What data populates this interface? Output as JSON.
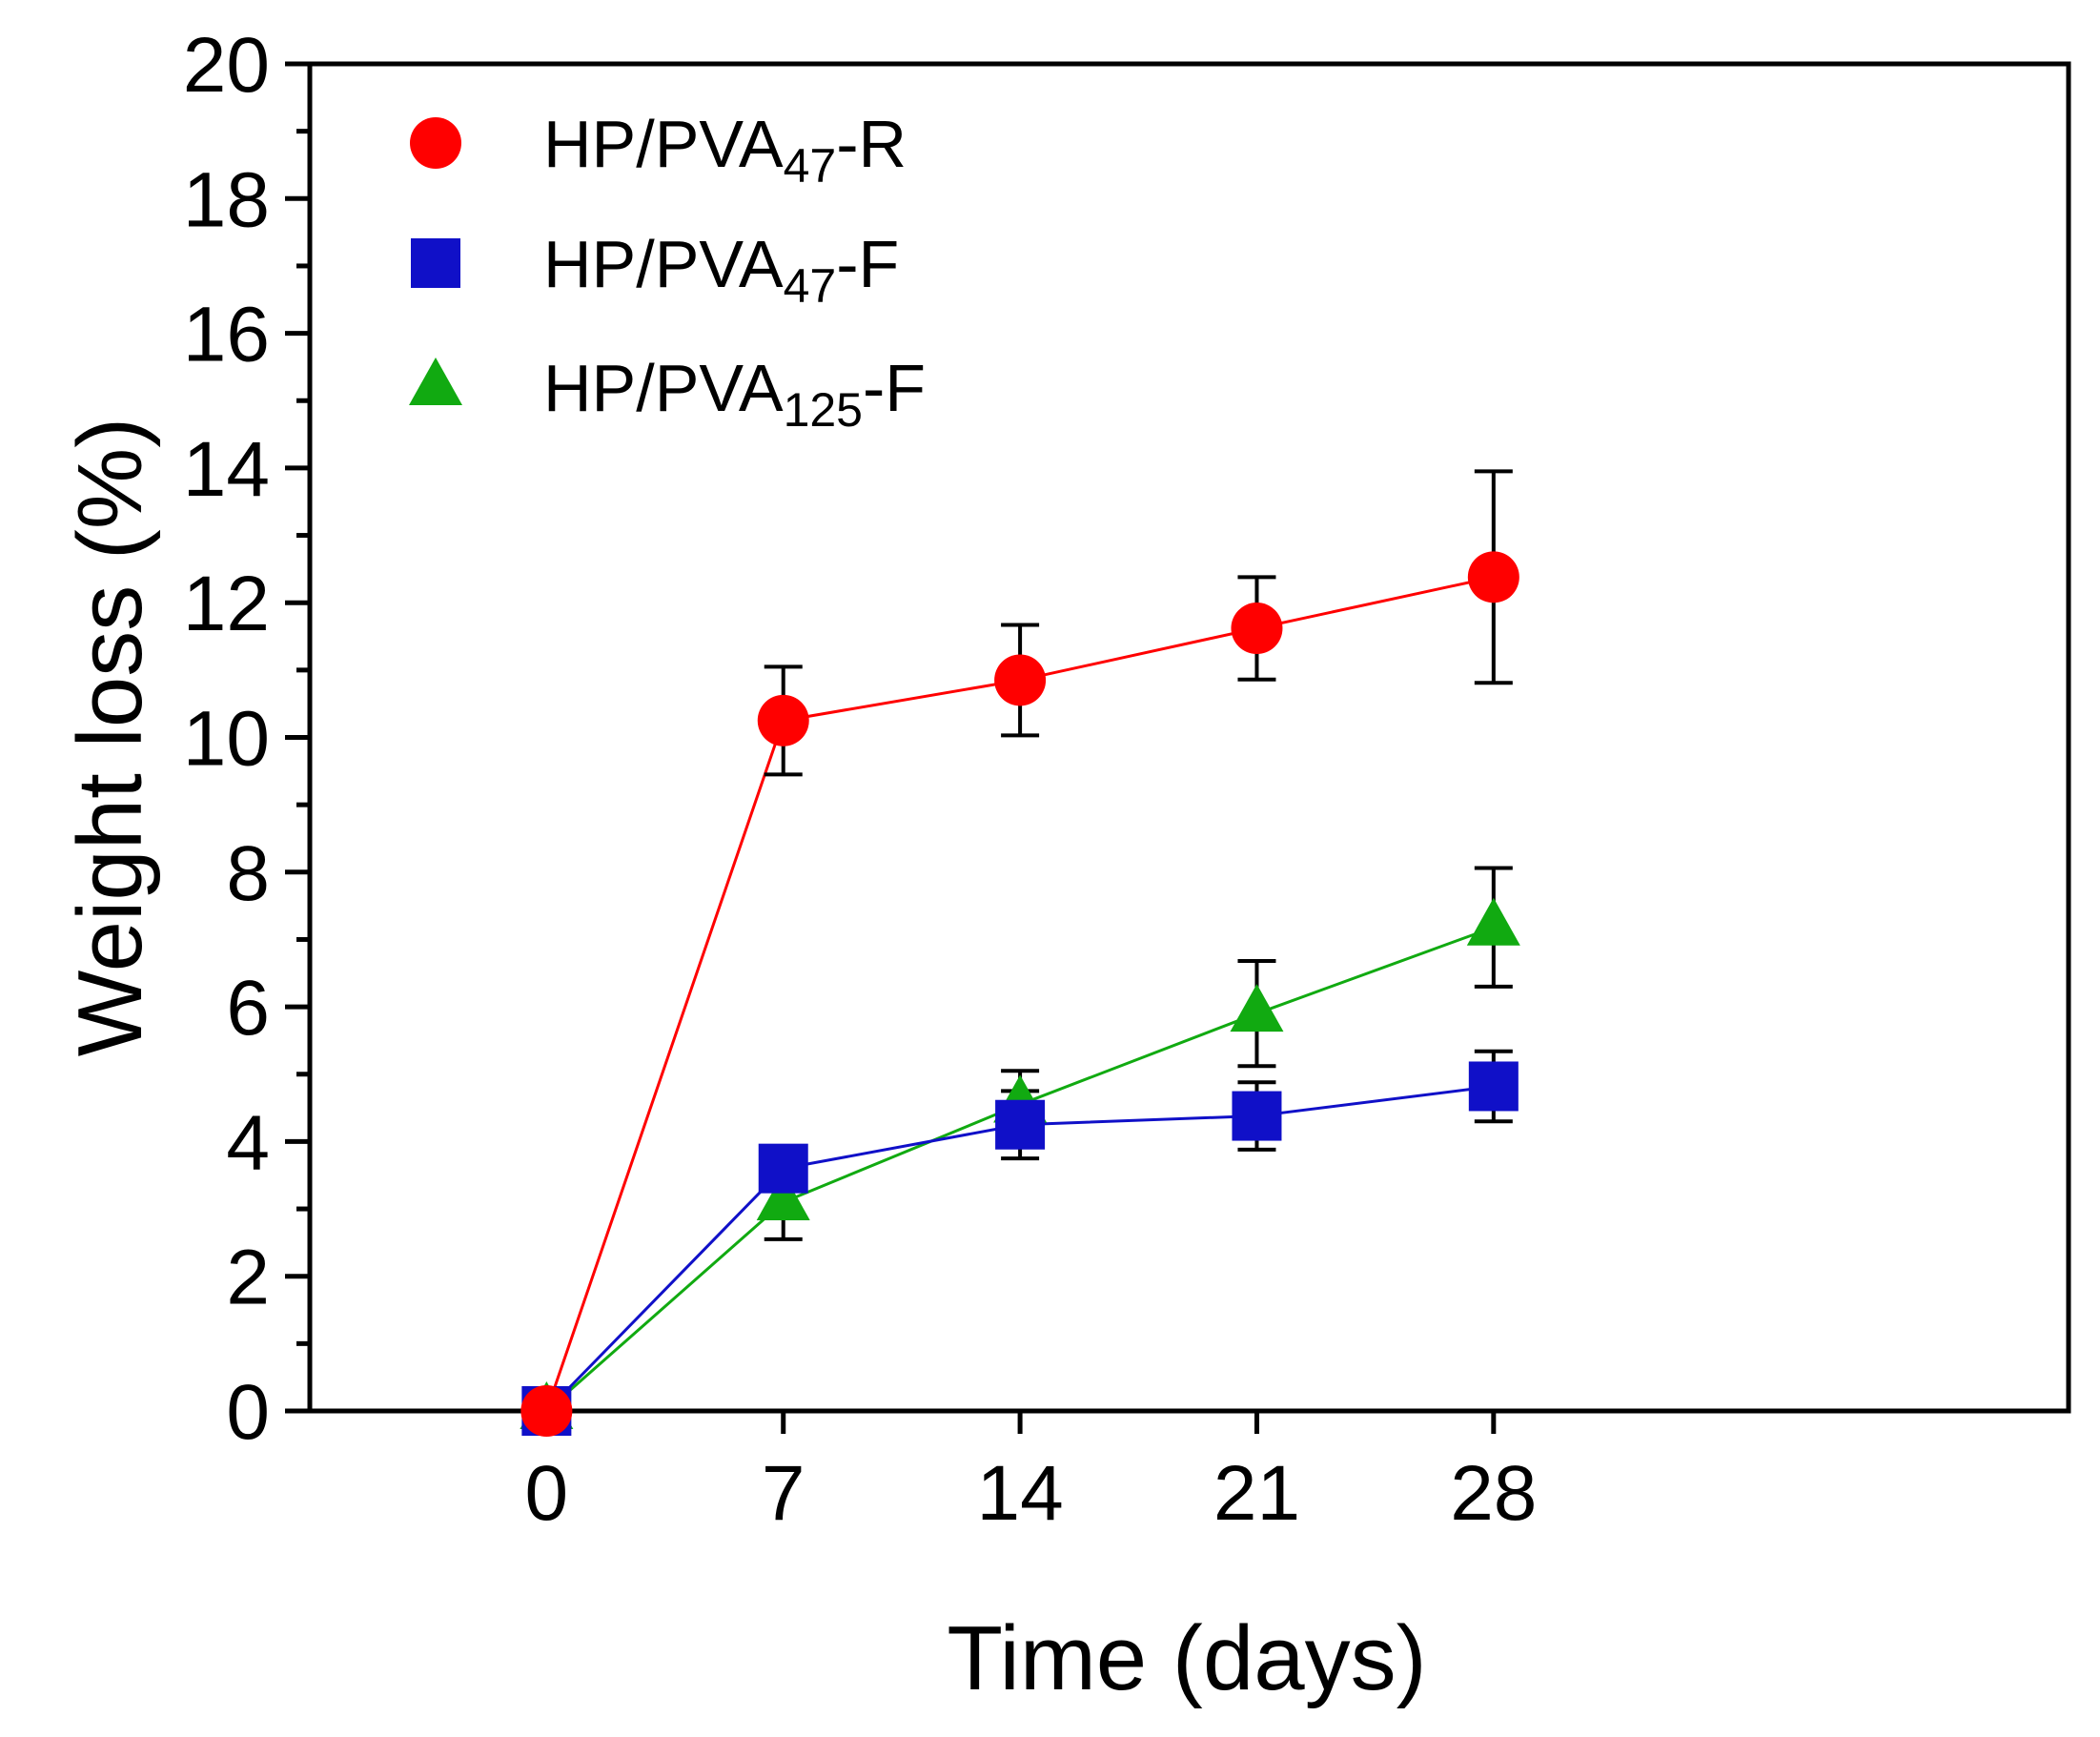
{
  "chart_data": {
    "type": "line",
    "title": "",
    "xlabel": "Time (days)",
    "ylabel": "Weight loss (%)",
    "x": [
      0,
      7,
      14,
      21,
      28
    ],
    "xticks": [
      "0",
      "7",
      "14",
      "21",
      "28"
    ],
    "yticks": [
      "0",
      "2",
      "4",
      "6",
      "8",
      "10",
      "12",
      "14",
      "16",
      "18",
      "20"
    ],
    "xlim": [
      -7,
      45
    ],
    "ylim": [
      0,
      20
    ],
    "grid": false,
    "legend_position": "top-left",
    "series": [
      {
        "id": "r47",
        "name": "HP/PVA47-R",
        "label_main": "HP/PVA",
        "label_sub": "47",
        "label_tail": "-R",
        "color": "#ff0000",
        "marker": "circle",
        "values": [
          0,
          10.25,
          10.85,
          11.62,
          12.38
        ],
        "errors": [
          0,
          0.8,
          0.82,
          0.76,
          1.57
        ]
      },
      {
        "id": "f47",
        "name": "HP/PVA47-F",
        "label_main": "HP/PVA",
        "label_sub": "47",
        "label_tail": "-F",
        "color": "#1010c8",
        "marker": "square",
        "values": [
          0,
          3.6,
          4.25,
          4.38,
          4.82
        ],
        "errors": [
          0,
          0,
          0.5,
          0.5,
          0.52
        ]
      },
      {
        "id": "f125",
        "name": "HP/PVA125-F",
        "label_main": "HP/PVA",
        "label_sub": "125",
        "label_tail": "-F",
        "color": "#11aa11",
        "marker": "triangle",
        "values": [
          0,
          3.1,
          4.55,
          5.9,
          7.18
        ],
        "errors": [
          0,
          0.55,
          0.5,
          0.78,
          0.88
        ]
      }
    ]
  }
}
